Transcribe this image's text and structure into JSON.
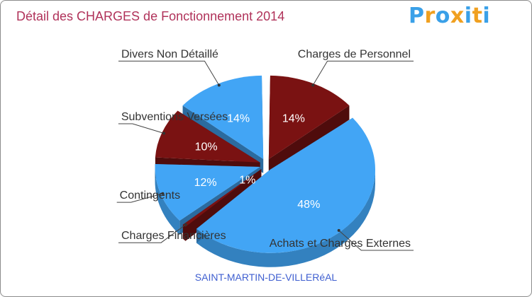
{
  "chart_data": {
    "type": "pie",
    "title": "Détail des CHARGES de Fonctionnement 2014",
    "location": "SAINT-MARTIN-DE-VILLERéAL",
    "slices": [
      {
        "label": "Charges de Personnel",
        "value": 14,
        "value_label": "14%",
        "color": "#7a1212"
      },
      {
        "label": "Achats et Charges Externes",
        "value": 48,
        "value_label": "48%",
        "color": "#42a5f5"
      },
      {
        "label": "Charges Financières",
        "value": 1,
        "value_label": "1%",
        "color": "#7a1212"
      },
      {
        "label": "Contingents",
        "value": 12,
        "value_label": "12%",
        "color": "#42a5f5"
      },
      {
        "label": "Subventions Versées",
        "value": 10,
        "value_label": "10%",
        "color": "#7a1212"
      },
      {
        "label": "Divers Non Détaillé",
        "value": 14,
        "value_label": "14%",
        "color": "#42a5f5"
      }
    ]
  },
  "brand": {
    "name": "Proxiti",
    "letters": [
      "P",
      "r",
      "o",
      "x",
      "i",
      "t",
      "i"
    ],
    "letter_colors": [
      "#3aa0e8",
      "#f0a020",
      "#3aa0e8",
      "#f0a020",
      "#3aa0e8",
      "#f0a020",
      "#3aa0e8"
    ]
  },
  "colors": {
    "title": "#b0325a",
    "location": "#3f5fd0"
  }
}
